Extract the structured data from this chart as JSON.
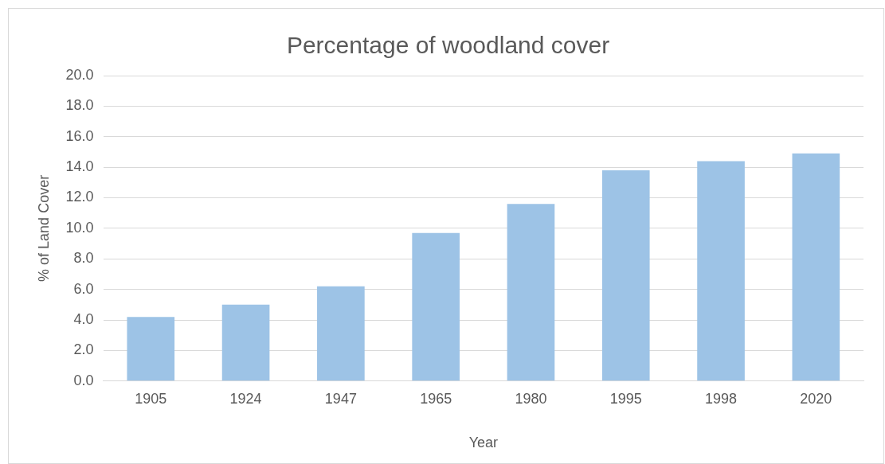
{
  "chart_data": {
    "type": "bar",
    "title": "Percentage of woodland cover",
    "xlabel": "Year",
    "ylabel": "% of Land Cover",
    "categories": [
      "1905",
      "1924",
      "1947",
      "1965",
      "1980",
      "1995",
      "1998",
      "2020"
    ],
    "values": [
      4.2,
      5.0,
      6.2,
      9.7,
      11.6,
      13.8,
      14.4,
      14.9
    ],
    "color": "#9dc3e6",
    "ylim": [
      0,
      20
    ],
    "yticks": [
      {
        "value": 0,
        "label": "0.0"
      },
      {
        "value": 2,
        "label": "2.0"
      },
      {
        "value": 4,
        "label": "4.0"
      },
      {
        "value": 6,
        "label": "6.0"
      },
      {
        "value": 8,
        "label": "8.0"
      },
      {
        "value": 10,
        "label": "10.0"
      },
      {
        "value": 12,
        "label": "12.0"
      },
      {
        "value": 14,
        "label": "14.0"
      },
      {
        "value": 16,
        "label": "16.0"
      },
      {
        "value": 18,
        "label": "18.0"
      },
      {
        "value": 20,
        "label": "20.0"
      }
    ],
    "grid": "y",
    "legend": false
  }
}
